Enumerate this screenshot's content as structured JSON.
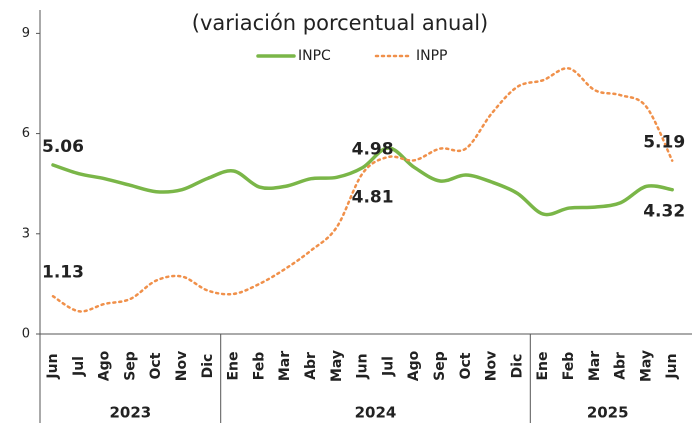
{
  "chart_data": {
    "type": "line",
    "subtitle": "(variación porcentual anual)",
    "groups": [
      {
        "label": "2023",
        "categories": [
          "Jun",
          "Jul",
          "Ago",
          "Sep",
          "Oct",
          "Nov",
          "Dic"
        ]
      },
      {
        "label": "2024",
        "categories": [
          "Ene",
          "Feb",
          "Mar",
          "Abr",
          "May",
          "Jun",
          "Jul",
          "Ago",
          "Sep",
          "Oct",
          "Nov",
          "Dic"
        ]
      },
      {
        "label": "2025",
        "categories": [
          "Ene",
          "Feb",
          "Mar",
          "Abr",
          "May",
          "Jun"
        ]
      }
    ],
    "series": [
      {
        "name": "INPC",
        "color": "#7ab648",
        "style": "solid",
        "values": [
          5.06,
          4.8,
          4.65,
          4.45,
          4.26,
          4.32,
          4.66,
          4.88,
          4.4,
          4.42,
          4.65,
          4.69,
          4.98,
          5.57,
          4.99,
          4.58,
          4.76,
          4.55,
          4.21,
          3.59,
          3.77,
          3.8,
          3.93,
          4.42,
          4.32
        ],
        "value_labels": [
          "5.06",
          null,
          null,
          null,
          null,
          null,
          null,
          null,
          null,
          null,
          null,
          null,
          "4.98",
          null,
          null,
          null,
          null,
          null,
          null,
          null,
          null,
          null,
          null,
          null,
          "4.32"
        ]
      },
      {
        "name": "INPP",
        "color": "#f0904a",
        "style": "dotted",
        "values": [
          1.13,
          0.68,
          0.9,
          1.05,
          1.6,
          1.72,
          1.3,
          1.2,
          1.5,
          1.95,
          2.5,
          3.2,
          4.81,
          5.3,
          5.2,
          5.55,
          5.55,
          6.6,
          7.4,
          7.6,
          7.95,
          7.3,
          7.15,
          6.8,
          5.19
        ],
        "value_labels": [
          "1.13",
          null,
          null,
          null,
          null,
          null,
          null,
          null,
          null,
          null,
          null,
          null,
          "4.81",
          null,
          null,
          null,
          null,
          null,
          null,
          null,
          null,
          null,
          null,
          null,
          "5.19"
        ]
      }
    ],
    "ylim": [
      0,
      9.7
    ],
    "yticks": [
      0,
      3,
      6,
      9
    ],
    "legend": "top"
  }
}
